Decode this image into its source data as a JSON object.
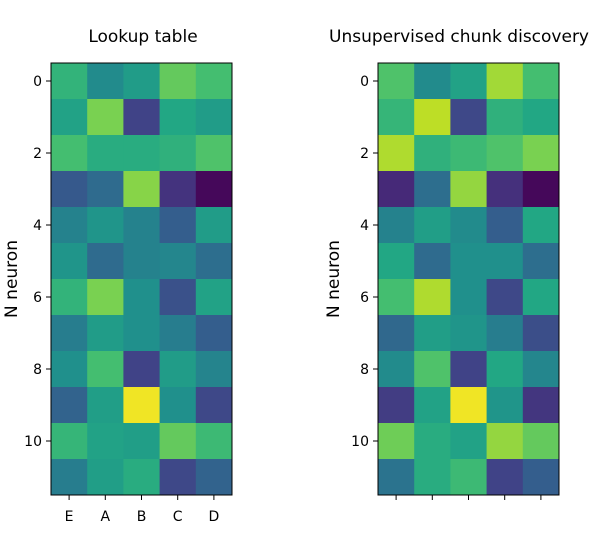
{
  "chart_data": [
    {
      "type": "heatmap",
      "title": "Lookup table",
      "ylabel": "N neuron",
      "xlabel": "",
      "x_categories": [
        "E",
        "A",
        "B",
        "C",
        "D"
      ],
      "y_ticks": [
        "0",
        "2",
        "4",
        "6",
        "8",
        "10"
      ],
      "y_tick_values": [
        0,
        2,
        4,
        6,
        8,
        10
      ],
      "colormap": "viridis",
      "values": [
        [
          0.65,
          0.48,
          0.55,
          0.76,
          0.7
        ],
        [
          0.58,
          0.8,
          0.2,
          0.6,
          0.55
        ],
        [
          0.7,
          0.62,
          0.62,
          0.64,
          0.72
        ],
        [
          0.28,
          0.35,
          0.82,
          0.15,
          0.02
        ],
        [
          0.44,
          0.52,
          0.44,
          0.3,
          0.55
        ],
        [
          0.52,
          0.35,
          0.44,
          0.46,
          0.36
        ],
        [
          0.65,
          0.8,
          0.5,
          0.25,
          0.58
        ],
        [
          0.42,
          0.55,
          0.5,
          0.42,
          0.3
        ],
        [
          0.5,
          0.7,
          0.2,
          0.55,
          0.45
        ],
        [
          0.32,
          0.56,
          0.98,
          0.5,
          0.22
        ],
        [
          0.66,
          0.58,
          0.56,
          0.76,
          0.68
        ],
        [
          0.42,
          0.56,
          0.62,
          0.22,
          0.32
        ]
      ]
    },
    {
      "type": "heatmap",
      "title": "Unsupervised chunk discovery",
      "ylabel": "N neuron",
      "xlabel": "",
      "x_categories": [
        "",
        "",
        "",
        "",
        ""
      ],
      "y_ticks": [
        "0",
        "2",
        "4",
        "6",
        "8",
        "10"
      ],
      "y_tick_values": [
        0,
        2,
        4,
        6,
        8,
        10
      ],
      "colormap": "viridis",
      "values": [
        [
          0.72,
          0.48,
          0.58,
          0.86,
          0.7
        ],
        [
          0.66,
          0.9,
          0.22,
          0.64,
          0.6
        ],
        [
          0.88,
          0.64,
          0.68,
          0.72,
          0.8
        ],
        [
          0.12,
          0.36,
          0.84,
          0.14,
          0.02
        ],
        [
          0.44,
          0.56,
          0.48,
          0.3,
          0.6
        ],
        [
          0.6,
          0.35,
          0.5,
          0.5,
          0.36
        ],
        [
          0.7,
          0.88,
          0.5,
          0.22,
          0.6
        ],
        [
          0.34,
          0.56,
          0.52,
          0.42,
          0.24
        ],
        [
          0.48,
          0.72,
          0.2,
          0.6,
          0.46
        ],
        [
          0.18,
          0.58,
          0.98,
          0.52,
          0.16
        ],
        [
          0.78,
          0.62,
          0.58,
          0.84,
          0.76
        ],
        [
          0.38,
          0.62,
          0.68,
          0.2,
          0.3
        ]
      ]
    }
  ]
}
